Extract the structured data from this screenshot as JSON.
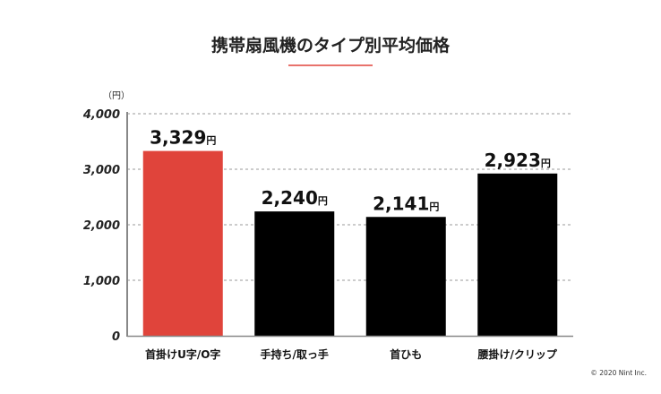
{
  "chart_data": {
    "type": "bar",
    "title": "携帯扇風機のタイプ別平均価格",
    "unit_label": "（円）",
    "value_suffix": "円",
    "categories": [
      "首掛けU字/O字",
      "手持ち/取っ手",
      "首ひも",
      "腰掛け/クリップ"
    ],
    "values": [
      3329,
      2240,
      2141,
      2923
    ],
    "value_labels": [
      "3,329",
      "2,240",
      "2,141",
      "2,923"
    ],
    "yticks": [
      0,
      1000,
      2000,
      3000,
      4000
    ],
    "ytick_labels": [
      "0",
      "1,000",
      "2,000",
      "3,000",
      "4,000"
    ],
    "ylim": [
      0,
      4000
    ],
    "grid": true,
    "xlabel": "",
    "ylabel": "",
    "colors": [
      "#e0443b",
      "#000000",
      "#000000",
      "#000000"
    ],
    "accent": "#e0443b"
  },
  "footer": {
    "copyright": "© 2020 Nint Inc."
  }
}
